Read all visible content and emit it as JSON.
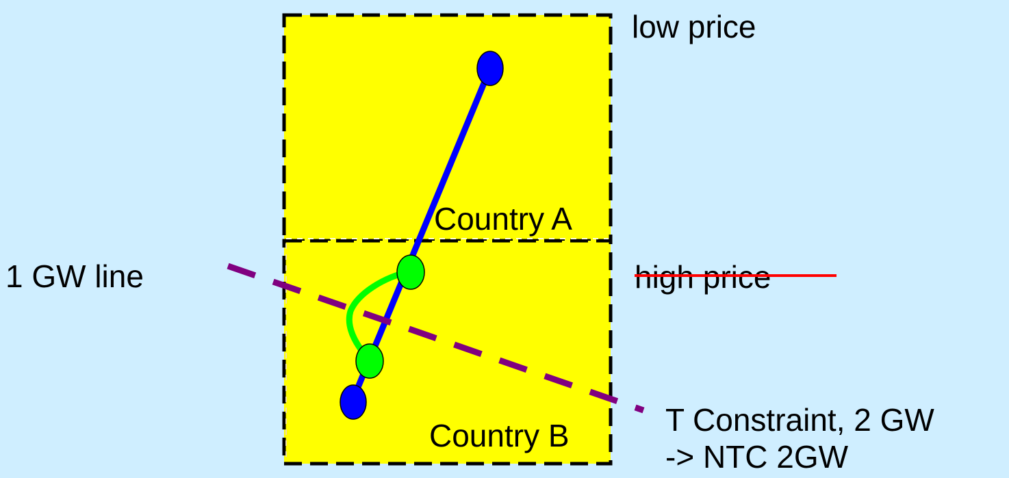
{
  "diagram": {
    "labels": {
      "low_price": "low price",
      "high_price": "high price",
      "country_a": "Country A",
      "country_b": "Country B",
      "line_1gw": "1 GW line",
      "t_constraint": "T Constraint, 2 GW",
      "ntc": "-> NTC  2GW"
    },
    "colors": {
      "background": "#cfeeff",
      "country_fill": "#ffff00",
      "border": "#000000",
      "node_blue": "#0000ff",
      "node_green": "#00ff00",
      "line_purple": "#800080",
      "strike_red": "#ff0000"
    }
  }
}
